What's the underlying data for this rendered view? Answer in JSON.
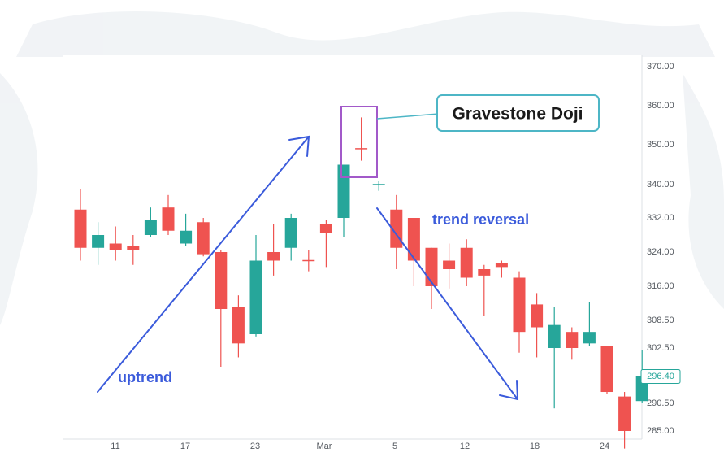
{
  "chart_data": {
    "type": "candlestick",
    "x_ticks": [
      "11",
      "17",
      "23",
      "Mar",
      "5",
      "12",
      "18",
      "24"
    ],
    "y_ticks": [
      "370.00",
      "360.00",
      "350.00",
      "340.00",
      "332.00",
      "324.00",
      "316.00",
      "308.50",
      "302.50",
      "296.40",
      "290.50",
      "285.00"
    ],
    "y_ticks_values": [
      370,
      360,
      350,
      340,
      332,
      324,
      316,
      308.5,
      302.5,
      296.4,
      290.5,
      285
    ],
    "last_price_label": "296.40",
    "last_price": 296.4,
    "colors": {
      "up": "#26a69a",
      "down": "#ef5350",
      "annotation": "#3b5bdb",
      "highlight": "#a259c9",
      "callout_border": "#4db6c6"
    },
    "candles": [
      {
        "open": 334.0,
        "high": 339.0,
        "low": 322.0,
        "close": 325.0
      },
      {
        "open": 325.0,
        "high": 331.0,
        "low": 321.0,
        "close": 328.0
      },
      {
        "open": 326.0,
        "high": 330.0,
        "low": 322.0,
        "close": 324.5
      },
      {
        "open": 325.5,
        "high": 328.0,
        "low": 321.0,
        "close": 324.5
      },
      {
        "open": 328.0,
        "high": 334.5,
        "low": 327.5,
        "close": 331.5
      },
      {
        "open": 334.5,
        "high": 337.5,
        "low": 328.0,
        "close": 329.0
      },
      {
        "open": 326.0,
        "high": 333.0,
        "low": 325.5,
        "close": 329.0
      },
      {
        "open": 331.0,
        "high": 332.0,
        "low": 323.0,
        "close": 323.5
      },
      {
        "open": 324.0,
        "high": 324.5,
        "low": 298.5,
        "close": 311.0
      },
      {
        "open": 311.5,
        "high": 314.0,
        "low": 300.5,
        "close": 303.5
      },
      {
        "open": 305.5,
        "high": 328.0,
        "low": 305.0,
        "close": 322.0
      },
      {
        "open": 324.0,
        "high": 330.5,
        "low": 318.5,
        "close": 322.0
      },
      {
        "open": 325.0,
        "high": 333.0,
        "low": 322.0,
        "close": 332.0
      },
      {
        "open": 322.0,
        "high": 324.5,
        "low": 319.5,
        "close": 322.0
      },
      {
        "open": 330.5,
        "high": 331.5,
        "low": 320.5,
        "close": 328.5
      },
      {
        "open": 332.0,
        "high": 345.0,
        "low": 327.5,
        "close": 345.0
      },
      {
        "open": 349.0,
        "high": 357.0,
        "low": 346.0,
        "close": 349.0
      },
      {
        "open": 340.0,
        "high": 341.0,
        "low": 338.5,
        "close": 340.0
      },
      {
        "open": 334.0,
        "high": 337.5,
        "low": 320.0,
        "close": 325.0
      },
      {
        "open": 332.0,
        "high": 332.0,
        "low": 316.0,
        "close": 322.0
      },
      {
        "open": 325.0,
        "high": 325.0,
        "low": 311.0,
        "close": 316.0
      },
      {
        "open": 322.0,
        "high": 326.0,
        "low": 315.5,
        "close": 320.0
      },
      {
        "open": 325.0,
        "high": 327.0,
        "low": 316.0,
        "close": 318.0
      },
      {
        "open": 320.0,
        "high": 321.0,
        "low": 309.5,
        "close": 318.5
      },
      {
        "open": 321.5,
        "high": 322.0,
        "low": 318.0,
        "close": 320.5
      },
      {
        "open": 318.0,
        "high": 319.5,
        "low": 301.5,
        "close": 306.0
      },
      {
        "open": 312.0,
        "high": 314.5,
        "low": 300.5,
        "close": 307.0
      },
      {
        "open": 302.5,
        "high": 311.5,
        "low": 289.5,
        "close": 307.5
      },
      {
        "open": 306.0,
        "high": 307.0,
        "low": 300.0,
        "close": 302.5
      },
      {
        "open": 303.5,
        "high": 312.5,
        "low": 303.0,
        "close": 306.0
      },
      {
        "open": 303.0,
        "high": 303.0,
        "low": 292.5,
        "close": 293.0
      },
      {
        "open": 292.0,
        "high": 293.0,
        "low": 281.5,
        "close": 285.0
      },
      {
        "open": 291.0,
        "high": 302.0,
        "low": 290.5,
        "close": 296.4
      }
    ],
    "annotations": {
      "pattern_label": "Gravestone Doji",
      "uptrend_label": "uptrend",
      "reversal_label": "trend reversal"
    }
  }
}
